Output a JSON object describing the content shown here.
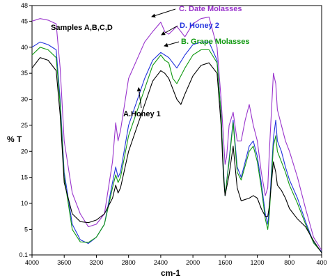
{
  "chart_data": {
    "type": "line",
    "xlabel": "cm-1",
    "ylabel": "% T",
    "xlim": [
      4000,
      400
    ],
    "ylim": [
      0.1,
      48
    ],
    "x_reversed": true,
    "x_ticks": [
      4000,
      3600,
      3200,
      2800,
      2400,
      2000,
      1600,
      1200,
      800,
      400
    ],
    "y_ticks": [
      0.1,
      5,
      10,
      15,
      20,
      25,
      30,
      35,
      40,
      45,
      48
    ],
    "grid": false,
    "legend": "none",
    "annotations": [
      {
        "text": "Samples A,B,C,D",
        "color": "#000000"
      },
      {
        "text": "C. Date Molasses",
        "color": "#9933cc"
      },
      {
        "text": "D. Honey 2",
        "color": "#2233dd"
      },
      {
        "text": "B. Grape Molasses",
        "color": "#119911"
      },
      {
        "text": "A.Honey 1",
        "color": "#000000"
      }
    ],
    "series": [
      {
        "color": "#9933cc",
        "x": [
          4000,
          3900,
          3800,
          3700,
          3650,
          3600,
          3500,
          3400,
          3300,
          3200,
          3100,
          3000,
          2960,
          2930,
          2900,
          2800,
          2600,
          2500,
          2400,
          2350,
          2300,
          2200,
          2100,
          2000,
          1900,
          1800,
          1700,
          1650,
          1600,
          1580,
          1550,
          1500,
          1450,
          1400,
          1350,
          1300,
          1250,
          1200,
          1150,
          1100,
          1070,
          1050,
          1000,
          970,
          950,
          900,
          850,
          800,
          700,
          600,
          500,
          400
        ],
        "values": [
          45,
          45.5,
          45.2,
          44.5,
          36,
          22,
          12,
          8,
          5.5,
          6,
          8,
          18,
          25.5,
          22,
          24,
          34,
          41,
          43,
          44.8,
          43,
          42.5,
          44,
          42,
          44.5,
          45.5,
          45.8,
          40,
          30,
          17.5,
          19,
          25,
          27.5,
          22,
          22,
          26,
          29,
          25,
          22,
          16,
          11.5,
          13,
          20,
          35,
          33,
          28,
          25,
          22,
          20,
          15,
          9,
          3.5,
          1
        ]
      },
      {
        "color": "#2233dd",
        "x": [
          4000,
          3900,
          3800,
          3700,
          3650,
          3600,
          3500,
          3400,
          3300,
          3200,
          3100,
          3000,
          2960,
          2930,
          2900,
          2800,
          2600,
          2500,
          2400,
          2350,
          2300,
          2250,
          2200,
          2100,
          2000,
          1900,
          1800,
          1700,
          1650,
          1620,
          1600,
          1550,
          1500,
          1450,
          1400,
          1300,
          1250,
          1200,
          1150,
          1100,
          1070,
          1050,
          1000,
          970,
          950,
          900,
          850,
          800,
          700,
          600,
          500,
          400
        ],
        "values": [
          40,
          41,
          40.5,
          39.5,
          30,
          16,
          6,
          3,
          2.3,
          3.5,
          6,
          14,
          17,
          15,
          16,
          25,
          34,
          37.5,
          39,
          38.5,
          38,
          37,
          36,
          38.5,
          40.5,
          41,
          41,
          37.5,
          27,
          16.5,
          11.5,
          18.5,
          26,
          17,
          15,
          21,
          22,
          19,
          14,
          8,
          6,
          9,
          22.5,
          26,
          22,
          20,
          17,
          14.5,
          11,
          6.5,
          2.5,
          0.7
        ]
      },
      {
        "color": "#119911",
        "x": [
          4000,
          3900,
          3800,
          3700,
          3650,
          3600,
          3500,
          3400,
          3300,
          3200,
          3100,
          3000,
          2960,
          2930,
          2900,
          2800,
          2600,
          2500,
          2400,
          2350,
          2300,
          2250,
          2200,
          2100,
          2000,
          1900,
          1800,
          1700,
          1650,
          1620,
          1600,
          1550,
          1500,
          1450,
          1400,
          1300,
          1250,
          1200,
          1150,
          1100,
          1070,
          1050,
          1000,
          970,
          950,
          900,
          850,
          800,
          700,
          600,
          500,
          400
        ],
        "values": [
          38.5,
          40,
          39.5,
          38,
          29,
          15,
          5,
          2.6,
          2.5,
          3.5,
          6,
          13,
          15.5,
          14,
          15,
          23,
          32,
          36.5,
          38.5,
          37.5,
          37,
          34,
          33,
          36,
          38.5,
          39.5,
          39.5,
          37,
          27,
          16,
          11.5,
          18,
          25.5,
          16,
          14.5,
          20,
          21,
          18,
          13,
          7,
          5,
          8,
          21,
          23,
          20,
          18,
          16,
          13.5,
          10,
          6,
          2.4,
          0.6
        ]
      },
      {
        "color": "#000000",
        "x": [
          4000,
          3900,
          3800,
          3700,
          3650,
          3600,
          3500,
          3400,
          3300,
          3200,
          3100,
          3000,
          2960,
          2930,
          2900,
          2800,
          2600,
          2500,
          2400,
          2350,
          2300,
          2200,
          2150,
          2100,
          2000,
          1900,
          1800,
          1700,
          1650,
          1620,
          1600,
          1550,
          1500,
          1450,
          1400,
          1300,
          1250,
          1200,
          1150,
          1100,
          1070,
          1050,
          1000,
          970,
          950,
          900,
          850,
          800,
          700,
          600,
          500,
          400
        ],
        "values": [
          36,
          38,
          37.5,
          35.5,
          27,
          14,
          8,
          6.5,
          6.3,
          6.8,
          8,
          11,
          13.5,
          12,
          13,
          20,
          29,
          33.5,
          35.5,
          35,
          34,
          30,
          29,
          31,
          34.5,
          36.5,
          37,
          35,
          25,
          15,
          11.5,
          15.5,
          21,
          13,
          10.5,
          11,
          11.5,
          11,
          9,
          7.5,
          7.5,
          9.5,
          18,
          16,
          13.5,
          12.5,
          11,
          9,
          7,
          5.5,
          2.8,
          0.5
        ]
      }
    ]
  }
}
